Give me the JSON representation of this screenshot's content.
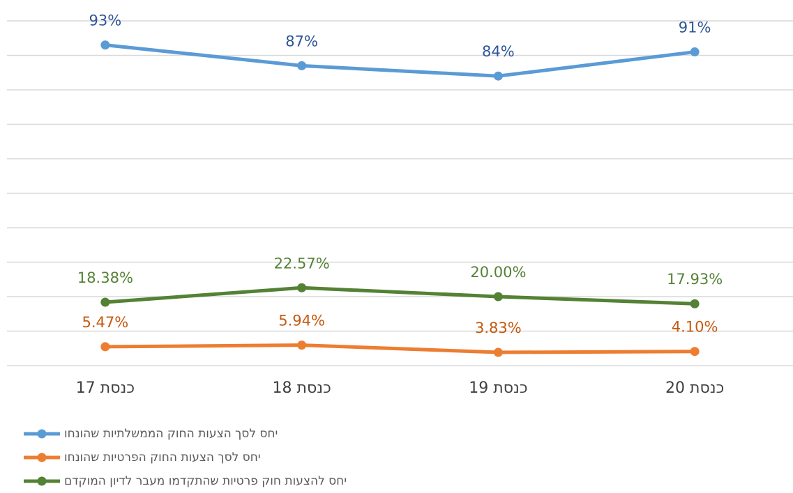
{
  "chart_data": {
    "type": "line",
    "categories": [
      "כנסת 17",
      "כנסת 18",
      "כנסת 19",
      "כנסת 20"
    ],
    "series": [
      {
        "name": "יחס לסך הצעות החוק הממשלתיות שהונחו",
        "color": "#5b9bd5",
        "label_color": "#2f5597",
        "values": [
          93,
          87,
          84,
          91
        ],
        "value_labels": [
          "93%",
          "87%",
          "84%",
          "91%"
        ]
      },
      {
        "name": "יחס לסך הצעות החוק הפרטיות שהונחו",
        "color": "#ed7d31",
        "label_color": "#c55a11",
        "values": [
          5.47,
          5.94,
          3.83,
          4.1
        ],
        "value_labels": [
          "5.47%",
          "5.94%",
          "3.83%",
          "4.10%"
        ]
      },
      {
        "name": "יחס להצעות חוק פרטיות שהתקדמו מעבר לדיון המוקדם",
        "color": "#548235",
        "label_color": "#548235",
        "values": [
          18.38,
          22.57,
          20.0,
          17.93
        ],
        "value_labels": [
          "18.38%",
          "22.57%",
          "20.00%",
          "17.93%"
        ]
      }
    ],
    "ylim": [
      0,
      100
    ],
    "yticks": [
      0,
      10,
      20,
      30,
      40,
      50,
      60,
      70,
      80,
      90,
      100
    ],
    "grid": true
  }
}
